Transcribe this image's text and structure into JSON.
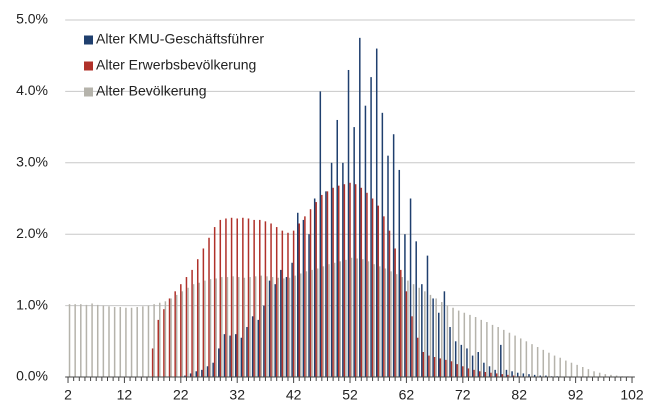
{
  "chart_data": {
    "type": "bar",
    "categories": [
      2,
      null,
      null,
      null,
      null,
      null,
      null,
      null,
      null,
      null,
      12,
      null,
      null,
      null,
      null,
      null,
      null,
      null,
      null,
      null,
      22,
      null,
      null,
      null,
      null,
      null,
      null,
      null,
      null,
      null,
      32,
      null,
      null,
      null,
      null,
      null,
      null,
      null,
      null,
      null,
      42,
      null,
      null,
      null,
      null,
      null,
      null,
      null,
      null,
      null,
      52,
      null,
      null,
      null,
      null,
      null,
      null,
      null,
      null,
      null,
      62,
      null,
      null,
      null,
      null,
      null,
      null,
      null,
      null,
      null,
      72,
      null,
      null,
      null,
      null,
      null,
      null,
      null,
      null,
      null,
      82,
      null,
      null,
      null,
      null,
      null,
      null,
      null,
      null,
      null,
      92,
      null,
      null,
      null,
      null,
      null,
      null,
      null,
      null,
      null,
      102
    ],
    "series": [
      {
        "name": "Alter KMU-Geschäftsführer",
        "color": "#1f3f6e",
        "values": [
          0,
          0,
          0,
          0,
          0,
          0,
          0,
          0,
          0,
          0,
          0,
          0,
          0,
          0,
          0,
          0,
          0,
          0,
          0,
          0,
          0,
          0.02,
          0.05,
          0.08,
          0.1,
          0.15,
          0.2,
          0.4,
          0.6,
          0.58,
          0.6,
          0.55,
          0.7,
          0.85,
          0.8,
          1.0,
          1.35,
          1.3,
          1.5,
          1.4,
          1.6,
          2.3,
          2.2,
          2.0,
          2.5,
          4.0,
          2.6,
          3.0,
          3.6,
          3.0,
          4.3,
          3.5,
          4.75,
          3.8,
          4.2,
          4.6,
          3.7,
          3.1,
          3.4,
          2.9,
          2.0,
          2.5,
          1.9,
          1.3,
          1.7,
          1.1,
          0.9,
          1.2,
          0.7,
          0.5,
          0.45,
          0.4,
          0.3,
          0.35,
          0.2,
          0.15,
          0.1,
          0.45,
          0.1,
          0.08,
          0.06,
          0.05,
          0.04,
          0.03,
          0.02,
          0.02,
          0.01,
          0.01,
          0,
          0,
          0,
          0,
          0,
          0,
          0,
          0,
          0,
          0,
          0,
          0,
          0
        ]
      },
      {
        "name": "Alter Erwerbsbevölkerung",
        "color": "#b0312a",
        "values": [
          0,
          0,
          0,
          0,
          0,
          0,
          0,
          0,
          0,
          0,
          0,
          0,
          0,
          0,
          0,
          0.4,
          0.8,
          0.95,
          1.1,
          1.2,
          1.3,
          1.4,
          1.5,
          1.65,
          1.8,
          1.95,
          2.1,
          2.2,
          2.22,
          2.23,
          2.22,
          2.23,
          2.22,
          2.2,
          2.2,
          2.18,
          2.15,
          2.1,
          2.05,
          2.02,
          2.05,
          2.15,
          2.25,
          2.35,
          2.45,
          2.55,
          2.6,
          2.65,
          2.68,
          2.7,
          2.72,
          2.7,
          2.65,
          2.58,
          2.5,
          2.4,
          2.25,
          2.05,
          1.8,
          1.5,
          1.2,
          0.85,
          0.55,
          0.35,
          0.3,
          0.28,
          0.26,
          0.24,
          0.22,
          0.18,
          0.15,
          0.12,
          0.1,
          0.08,
          0.07,
          0.06,
          0.05,
          0.04,
          0.03,
          0.02,
          0.01,
          0,
          0,
          0,
          0,
          0,
          0,
          0,
          0,
          0,
          0,
          0,
          0,
          0,
          0,
          0,
          0,
          0,
          0,
          0,
          0
        ]
      },
      {
        "name": "Alter Bevölkerung",
        "color": "#b5b3ab",
        "values": [
          1.02,
          1.02,
          1.02,
          1.01,
          1.03,
          1.01,
          1.0,
          0.99,
          0.98,
          0.98,
          0.97,
          0.97,
          0.98,
          0.99,
          1.0,
          1.02,
          1.04,
          1.06,
          1.1,
          1.15,
          1.2,
          1.25,
          1.3,
          1.32,
          1.35,
          1.37,
          1.38,
          1.4,
          1.4,
          1.41,
          1.4,
          1.39,
          1.4,
          1.41,
          1.42,
          1.41,
          1.4,
          1.39,
          1.38,
          1.39,
          1.42,
          1.45,
          1.48,
          1.5,
          1.52,
          1.55,
          1.58,
          1.6,
          1.62,
          1.64,
          1.67,
          1.66,
          1.65,
          1.62,
          1.58,
          1.55,
          1.52,
          1.48,
          1.44,
          1.4,
          1.35,
          1.3,
          1.25,
          1.2,
          1.15,
          1.1,
          1.05,
          1.0,
          0.97,
          0.93,
          0.9,
          0.87,
          0.84,
          0.8,
          0.77,
          0.73,
          0.7,
          0.66,
          0.62,
          0.58,
          0.54,
          0.5,
          0.46,
          0.42,
          0.38,
          0.34,
          0.3,
          0.27,
          0.23,
          0.2,
          0.17,
          0.14,
          0.11,
          0.08,
          0.06,
          0.04,
          0.03,
          0.02,
          0.01,
          0.01,
          0.005
        ]
      }
    ],
    "ylim": [
      0,
      5
    ],
    "yticks": [
      {
        "value": 0,
        "label": "0.0%"
      },
      {
        "value": 1,
        "label": "1.0%"
      },
      {
        "value": 2,
        "label": "2.0%"
      },
      {
        "value": 3,
        "label": "3.0%"
      },
      {
        "value": 4,
        "label": "4.0%"
      },
      {
        "value": 5,
        "label": "5.0%"
      }
    ],
    "grid": true,
    "legend": "upper left"
  }
}
